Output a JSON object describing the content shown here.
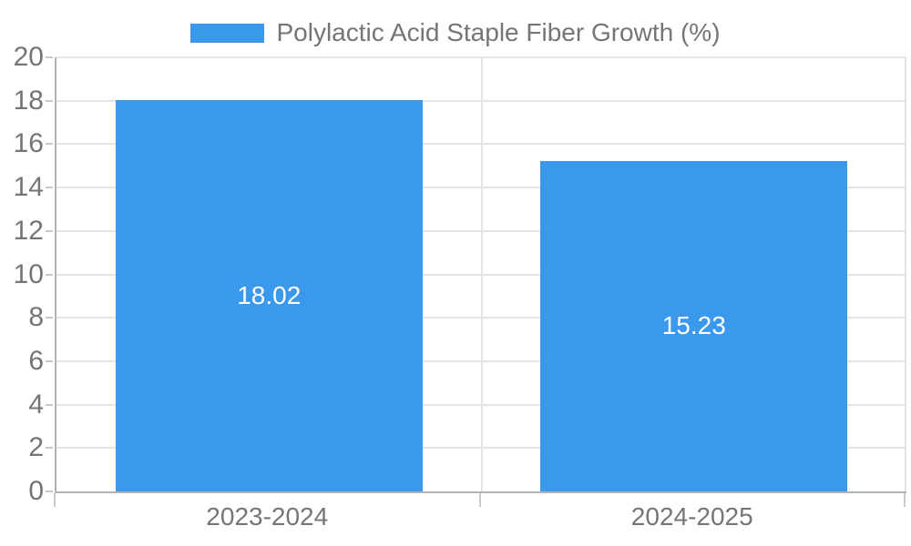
{
  "chart_data": {
    "type": "bar",
    "title": "Polylactic Acid Staple Fiber Growth (%)",
    "categories": [
      "2023-2024",
      "2024-2025"
    ],
    "series": [
      {
        "name": "Polylactic Acid Staple Fiber Growth (%)",
        "values": [
          18.02,
          15.23
        ]
      }
    ],
    "value_labels": [
      "18.02",
      "15.23"
    ],
    "xlabel": "",
    "ylabel": "",
    "ylim": [
      0,
      20
    ],
    "yticks": [
      0,
      2,
      4,
      6,
      8,
      10,
      12,
      14,
      16,
      18,
      20
    ],
    "grid": true,
    "legend_position": "top-center",
    "colors": {
      "bar": "#3a99ec",
      "axis_text": "#757575",
      "grid_line": "#e4e4e4",
      "axis_line": "#b3b3b3",
      "tick": "#c9c9c9",
      "value_label_text": "#ffffff",
      "background": "#ffffff"
    }
  }
}
